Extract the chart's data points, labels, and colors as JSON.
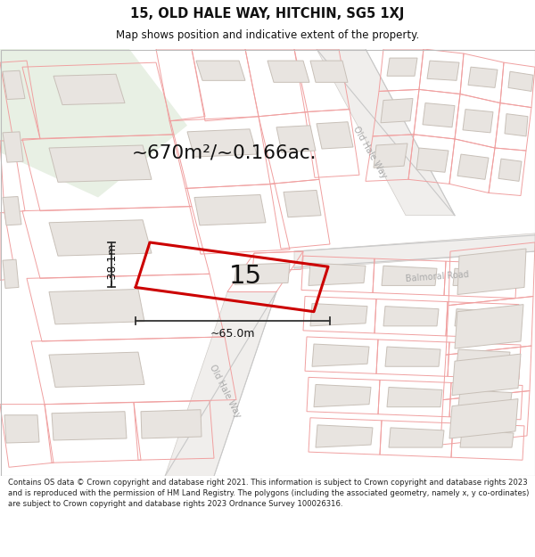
{
  "title_line1": "15, OLD HALE WAY, HITCHIN, SG5 1XJ",
  "title_line2": "Map shows position and indicative extent of the property.",
  "footer_text": "Contains OS data © Crown copyright and database right 2021. This information is subject to Crown copyright and database rights 2023 and is reproduced with the permission of HM Land Registry. The polygons (including the associated geometry, namely x, y co-ordinates) are subject to Crown copyright and database rights 2023 Ordnance Survey 100026316.",
  "area_label": "~670m²/~0.166ac.",
  "width_label": "~65.0m",
  "height_label": "~38.1m",
  "number_label": "15",
  "map_bg": "#f7f6f4",
  "plot_color": "#cc0000",
  "parcel_line_color": "#f0a0a0",
  "building_fill": "#e8e4e0",
  "building_edge": "#c8c0b8",
  "road_fill": "#f0eeec",
  "dim_color": "#333333",
  "road_label_color": "#aaaaaa",
  "green_fill": "#e8f0e4",
  "title_color": "#111111",
  "footer_color": "#222222"
}
